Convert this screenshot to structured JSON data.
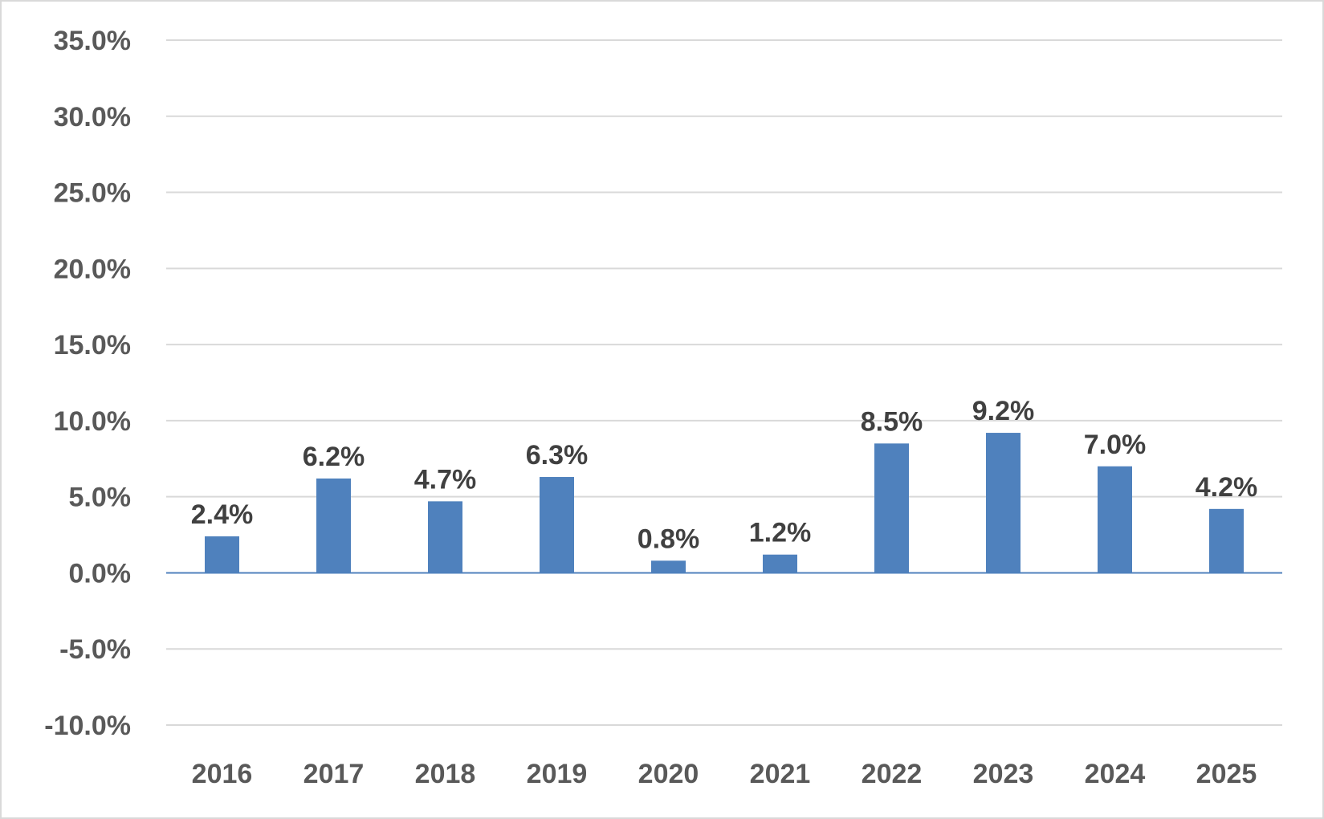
{
  "chart_data": {
    "type": "bar",
    "categories": [
      "2016",
      "2017",
      "2018",
      "2019",
      "2020",
      "2021",
      "2022",
      "2023",
      "2024",
      "2025"
    ],
    "values": [
      2.4,
      6.2,
      4.7,
      6.3,
      0.8,
      1.2,
      8.5,
      9.2,
      7.0,
      4.2
    ],
    "data_labels": [
      "2.4%",
      "6.2%",
      "4.7%",
      "6.3%",
      "0.8%",
      "1.2%",
      "8.5%",
      "9.2%",
      "7.0%",
      "4.2%"
    ],
    "y_ticks": [
      35,
      30,
      25,
      20,
      15,
      10,
      5,
      0,
      -5,
      -10
    ],
    "y_tick_labels": [
      "35.0%",
      "30.0%",
      "25.0%",
      "20.0%",
      "15.0%",
      "10.0%",
      "5.0%",
      "0.0%",
      "-5.0%",
      "-10.0%"
    ],
    "ylim": [
      -10,
      35
    ],
    "grid": true,
    "legend": "none",
    "bar_color": "#4f81bd",
    "grid_color": "#d9d9d9",
    "title": "",
    "xlabel": "",
    "ylabel": ""
  }
}
